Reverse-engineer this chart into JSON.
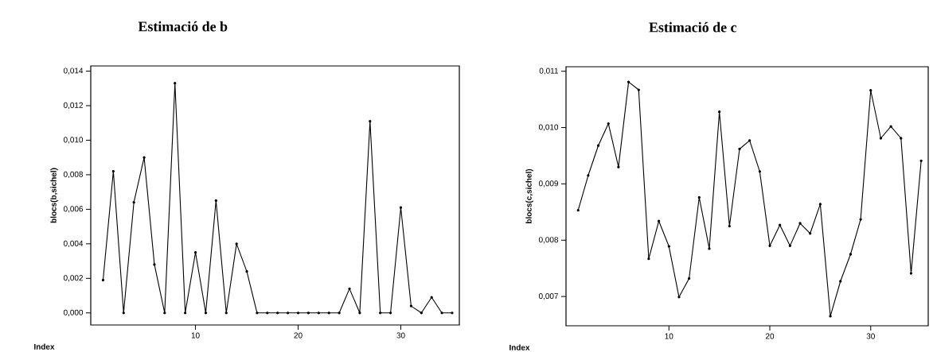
{
  "chart_data": [
    {
      "type": "line",
      "title": "Estimació de b",
      "xlabel": "Index",
      "ylabel": "blocs(b,sichel)",
      "color": "#000000",
      "marker": "circle",
      "x": [
        1,
        2,
        3,
        4,
        5,
        6,
        7,
        8,
        9,
        10,
        11,
        12,
        13,
        14,
        15,
        16,
        17,
        18,
        19,
        20,
        21,
        22,
        23,
        24,
        25,
        26,
        27,
        28,
        29,
        30,
        31,
        32,
        33,
        34,
        35
      ],
      "values": [
        0.0019,
        0.0082,
        0,
        0.0064,
        0.009,
        0.0028,
        0,
        0.0133,
        0,
        0.0035,
        0,
        0.0065,
        0,
        0.004,
        0.0024,
        0,
        0,
        0,
        0,
        0,
        0,
        0,
        0,
        0,
        0.0014,
        0,
        0.0111,
        0,
        0,
        0.0061,
        0.0004,
        0,
        0.0009,
        0,
        0
      ],
      "xlim": [
        -0.2,
        35.7
      ],
      "ylim": [
        -0.0007,
        0.0143
      ],
      "xticks": [
        10,
        20,
        30
      ],
      "yticks": [
        {
          "value": 0,
          "label": "0,000"
        },
        {
          "value": 0.002,
          "label": "0,002"
        },
        {
          "value": 0.004,
          "label": "0,004"
        },
        {
          "value": 0.006,
          "label": "0,006"
        },
        {
          "value": 0.008,
          "label": "0,008"
        },
        {
          "value": 0.01,
          "label": "0,010"
        },
        {
          "value": 0.012,
          "label": "0,012"
        },
        {
          "value": 0.014,
          "label": "0,014"
        }
      ]
    },
    {
      "type": "line",
      "title": "Estimació de c",
      "xlabel": "Index",
      "ylabel": "blocs(c,sichel)",
      "color": "#000000",
      "marker": "circle",
      "x": [
        1,
        2,
        3,
        4,
        5,
        6,
        7,
        8,
        9,
        10,
        11,
        12,
        13,
        14,
        15,
        16,
        17,
        18,
        19,
        20,
        21,
        22,
        23,
        24,
        25,
        26,
        27,
        28,
        29,
        30,
        31,
        32,
        33,
        34,
        35
      ],
      "values": [
        0.00853,
        0.00915,
        0.00968,
        0.01007,
        0.0093,
        0.01081,
        0.01067,
        0.00767,
        0.00834,
        0.00789,
        0.00699,
        0.00732,
        0.00876,
        0.00785,
        0.01028,
        0.00825,
        0.00962,
        0.00977,
        0.00922,
        0.0079,
        0.00827,
        0.0079,
        0.0083,
        0.00812,
        0.00864,
        0.00665,
        0.00727,
        0.00775,
        0.00837,
        0.01066,
        0.00981,
        0.01002,
        0.00981,
        0.00741,
        0.00941
      ],
      "xlim": [
        -0.2,
        35.7
      ],
      "ylim": [
        0.00648,
        0.01108
      ],
      "xticks": [
        10,
        20,
        30
      ],
      "yticks": [
        {
          "value": 0.007,
          "label": "0,007"
        },
        {
          "value": 0.008,
          "label": "0,008"
        },
        {
          "value": 0.009,
          "label": "0,009"
        },
        {
          "value": 0.01,
          "label": "0,010"
        },
        {
          "value": 0.011,
          "label": "0,011"
        }
      ]
    }
  ]
}
